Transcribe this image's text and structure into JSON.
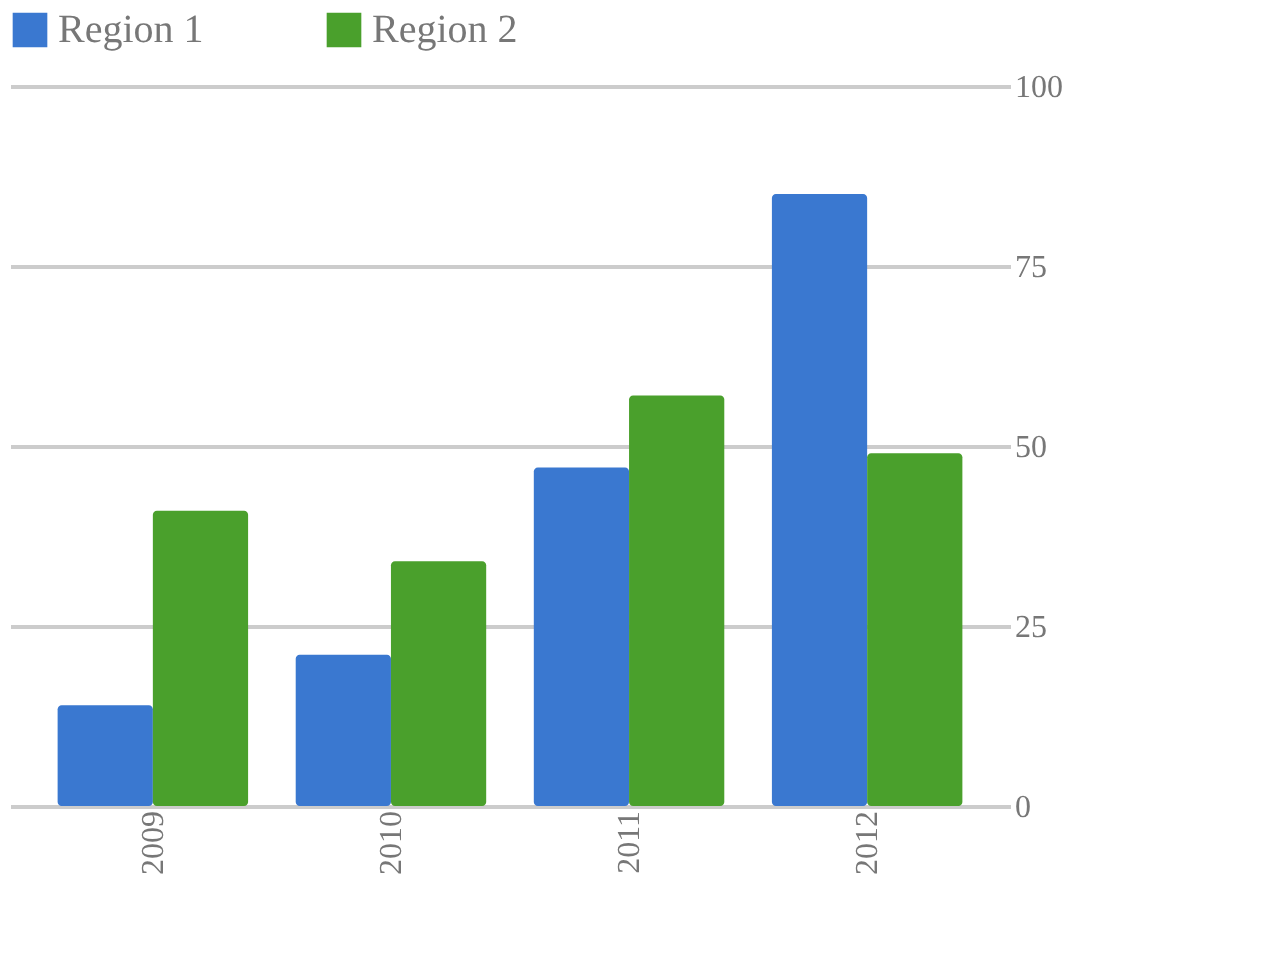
{
  "chart_data": {
    "type": "bar",
    "categories": [
      "2009",
      "2010",
      "2011",
      "2012"
    ],
    "series": [
      {
        "name": "Region 1",
        "color": "#3a78d0",
        "values": [
          14,
          21,
          47,
          85
        ]
      },
      {
        "name": "Region 2",
        "color": "#4aa02c",
        "values": [
          41,
          34,
          57,
          49
        ]
      }
    ],
    "ylim": [
      0,
      100
    ],
    "yticks": [
      0,
      25,
      50,
      75,
      100
    ],
    "grid": "y",
    "legend": "top"
  }
}
